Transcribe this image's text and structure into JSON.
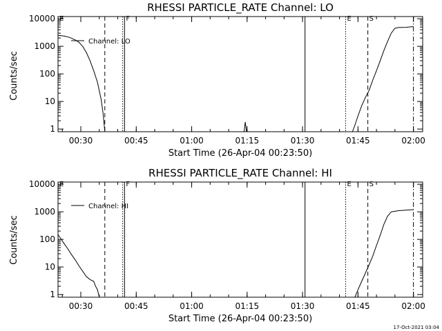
{
  "footer": "17-Oct-2021 03:04",
  "chart_data": [
    {
      "type": "line",
      "title": "RHESSI PARTICLE_RATE Channel: LO",
      "xlabel": "Start Time (26-Apr-04 00:23:50)",
      "ylabel": "Counts/sec",
      "yscale": "log",
      "xlim": [
        "00:23:50",
        "02:02:30"
      ],
      "ylim": [
        0.8,
        12000
      ],
      "x_ticks": [
        "00:30",
        "00:45",
        "01:00",
        "01:15",
        "01:30",
        "01:45",
        "02:00"
      ],
      "y_ticks": [
        "1",
        "10",
        "100",
        "1000",
        "10000"
      ],
      "legend_position": "upper-left",
      "series": [
        {
          "name": "Channel: LO",
          "color": "#000000",
          "points": [
            [
              "00:23:50",
              2500
            ],
            [
              "00:25:30",
              2350
            ],
            [
              "00:27:00",
              2100
            ],
            [
              "00:28:30",
              1700
            ],
            [
              "00:29:30",
              1400
            ],
            [
              "00:30:30",
              1000
            ],
            [
              "00:31:30",
              600
            ],
            [
              "00:32:30",
              300
            ],
            [
              "00:33:30",
              130
            ],
            [
              "00:34:30",
              50
            ],
            [
              "00:35:30",
              12
            ],
            [
              "00:36:00",
              4
            ],
            [
              "00:36:30",
              0.8
            ],
            null,
            [
              "01:14:10",
              0.8
            ],
            [
              "01:14:30",
              1.8
            ],
            [
              "01:14:50",
              0.8
            ],
            null,
            [
              "01:43:30",
              0.8
            ],
            [
              "01:44:00",
              1.2
            ],
            [
              "01:45:00",
              3
            ],
            [
              "01:46:00",
              7
            ],
            [
              "01:47:00",
              14
            ],
            [
              "01:48:00",
              25
            ],
            [
              "01:49:00",
              60
            ],
            [
              "01:50:00",
              130
            ],
            [
              "01:51:00",
              300
            ],
            [
              "01:52:00",
              700
            ],
            [
              "01:53:00",
              1500
            ],
            [
              "01:54:00",
              3000
            ],
            [
              "01:55:00",
              4500
            ],
            [
              "01:56:00",
              4800
            ],
            [
              "01:58:00",
              4900
            ],
            [
              "02:00:00",
              5200
            ]
          ]
        }
      ],
      "markers": [
        {
          "label": "E",
          "time": "00:23:50",
          "style": "dashdot"
        },
        {
          "label": "",
          "time": "00:36:30",
          "style": "dashed"
        },
        {
          "label": "",
          "time": "00:41:20",
          "style": "dotted"
        },
        {
          "label": "F",
          "time": "00:41:50",
          "style": "solid"
        },
        {
          "label": "",
          "time": "01:30:40",
          "style": "solid"
        },
        {
          "label": "E",
          "time": "01:41:40",
          "style": "dotted"
        },
        {
          "label": "S",
          "time": "01:47:40",
          "style": "dashed"
        },
        {
          "label": "",
          "time": "02:00:00",
          "style": "dashdot"
        }
      ]
    },
    {
      "type": "line",
      "title": "RHESSI PARTICLE_RATE Channel: HI",
      "xlabel": "Start Time (26-Apr-04 00:23:50)",
      "ylabel": "Counts/sec",
      "yscale": "log",
      "xlim": [
        "00:23:50",
        "02:02:30"
      ],
      "ylim": [
        0.8,
        12000
      ],
      "x_ticks": [
        "00:30",
        "00:45",
        "01:00",
        "01:15",
        "01:30",
        "01:45",
        "02:00"
      ],
      "y_ticks": [
        "1",
        "10",
        "100",
        "1000",
        "10000"
      ],
      "legend_position": "upper-left",
      "series": [
        {
          "name": "Channel: HI",
          "color": "#000000",
          "points": [
            [
              "00:23:50",
              150
            ],
            [
              "00:24:30",
              110
            ],
            [
              "00:25:30",
              70
            ],
            [
              "00:26:30",
              45
            ],
            [
              "00:27:30",
              28
            ],
            [
              "00:28:30",
              18
            ],
            [
              "00:29:30",
              11
            ],
            [
              "00:30:30",
              7
            ],
            [
              "00:31:30",
              4.5
            ],
            [
              "00:32:30",
              3.5
            ],
            [
              "00:33:30",
              3
            ],
            [
              "00:34:00",
              2
            ],
            [
              "00:34:30",
              1.5
            ],
            [
              "00:35:00",
              0.8
            ],
            null,
            [
              "01:44:10",
              0.8
            ],
            [
              "01:45:00",
              1.5
            ],
            [
              "01:46:00",
              3
            ],
            [
              "01:47:00",
              6
            ],
            [
              "01:48:00",
              12
            ],
            [
              "01:49:00",
              25
            ],
            [
              "01:50:00",
              60
            ],
            [
              "01:51:00",
              140
            ],
            [
              "01:52:00",
              350
            ],
            [
              "01:53:00",
              700
            ],
            [
              "01:54:00",
              1000
            ],
            [
              "01:56:00",
              1100
            ],
            [
              "01:58:00",
              1150
            ],
            [
              "02:00:00",
              1200
            ]
          ]
        }
      ],
      "markers": [
        {
          "label": "E",
          "time": "00:23:50",
          "style": "dashdot"
        },
        {
          "label": "",
          "time": "00:36:30",
          "style": "dashed"
        },
        {
          "label": "",
          "time": "00:41:20",
          "style": "dotted"
        },
        {
          "label": "F",
          "time": "00:41:50",
          "style": "solid"
        },
        {
          "label": "",
          "time": "01:30:40",
          "style": "solid"
        },
        {
          "label": "E",
          "time": "01:41:40",
          "style": "dotted"
        },
        {
          "label": "S",
          "time": "01:47:40",
          "style": "dashed"
        },
        {
          "label": "",
          "time": "02:00:00",
          "style": "dashdot"
        }
      ]
    }
  ]
}
